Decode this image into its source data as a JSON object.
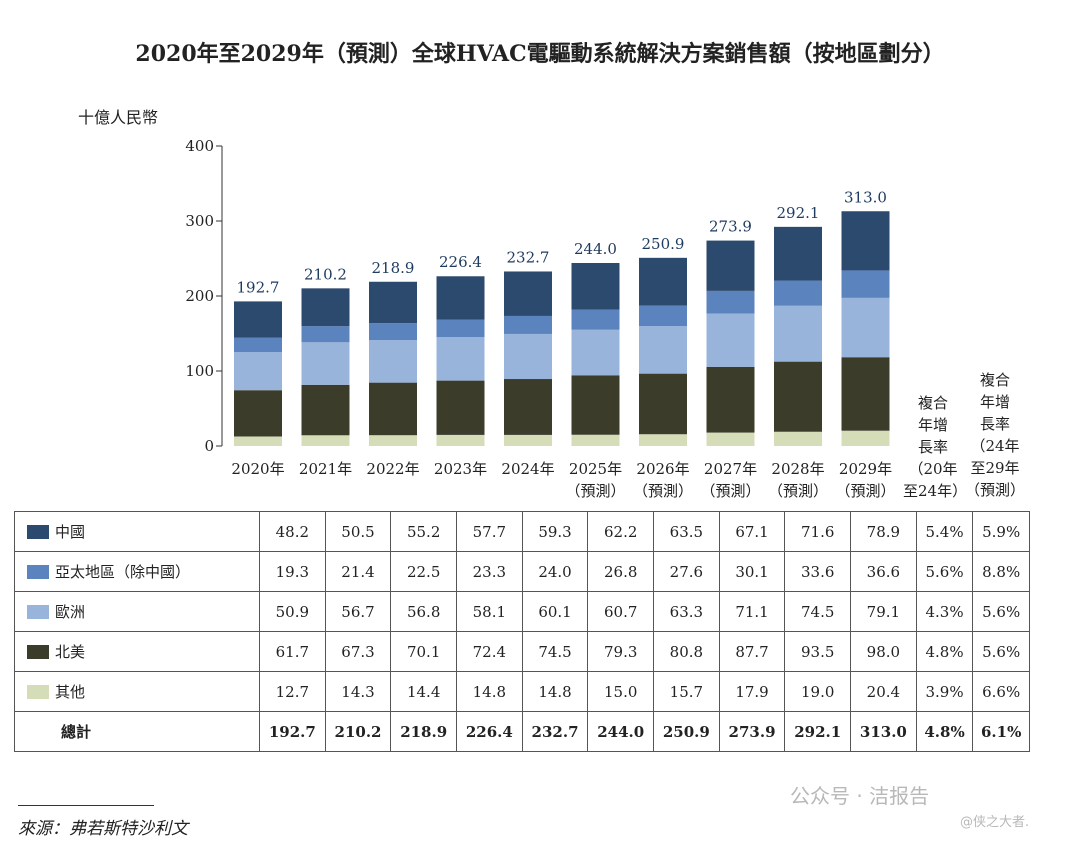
{
  "title": "2020年至2029年（預測）全球HVAC電驅動系統解決方案銷售額（按地區劃分）",
  "ylabel": "十億人民幣",
  "cagr_header_1": [
    "複合",
    "年增",
    "長率",
    "（20年",
    "至24年）"
  ],
  "cagr_header_2": [
    "複合",
    "年增",
    "長率",
    "（24年",
    "至29年",
    "（預測）"
  ],
  "source": "來源：弗若斯特沙利文",
  "watermark": "公众号 · 洁报告",
  "watermark_sub": "@侠之大者.",
  "colors": {
    "china": "#2c4a6e",
    "apac": "#5b83bd",
    "europe": "#99b4db",
    "north_america": "#3c3c2a",
    "others": "#d4dcb8"
  },
  "chart_data": {
    "type": "bar",
    "stacked": true,
    "categories": [
      [
        "2020年"
      ],
      [
        "2021年"
      ],
      [
        "2022年"
      ],
      [
        "2023年"
      ],
      [
        "2024年"
      ],
      [
        "2025年",
        "（預測）"
      ],
      [
        "2026年",
        "（預測）"
      ],
      [
        "2027年",
        "（預測）"
      ],
      [
        "2028年",
        "（預測）"
      ],
      [
        "2029年",
        "（預測）"
      ]
    ],
    "yticks": [
      0,
      100,
      200,
      300,
      400
    ],
    "ylim": [
      0,
      400
    ],
    "totals": [
      192.7,
      210.2,
      218.9,
      226.4,
      232.7,
      244.0,
      250.9,
      273.9,
      292.1,
      313.0
    ],
    "series": [
      {
        "key": "others",
        "name": "其他",
        "values": [
          12.7,
          14.3,
          14.4,
          14.8,
          14.8,
          15.0,
          15.7,
          17.9,
          19.0,
          20.4
        ],
        "cagr1": "3.9%",
        "cagr2": "6.6%"
      },
      {
        "key": "north_america",
        "name": "北美",
        "values": [
          61.7,
          67.3,
          70.1,
          72.4,
          74.5,
          79.3,
          80.8,
          87.7,
          93.5,
          98.0
        ],
        "cagr1": "4.8%",
        "cagr2": "5.6%"
      },
      {
        "key": "europe",
        "name": "歐洲",
        "values": [
          50.9,
          56.7,
          56.8,
          58.1,
          60.1,
          60.7,
          63.3,
          71.1,
          74.5,
          79.1
        ],
        "cagr1": "4.3%",
        "cagr2": "5.6%"
      },
      {
        "key": "apac",
        "name": "亞太地區（除中國）",
        "values": [
          19.3,
          21.4,
          22.5,
          23.3,
          24.0,
          26.8,
          27.6,
          30.1,
          33.6,
          36.6
        ],
        "cagr1": "5.6%",
        "cagr2": "8.8%"
      },
      {
        "key": "china",
        "name": "中國",
        "values": [
          48.2,
          50.5,
          55.2,
          57.7,
          59.3,
          62.2,
          63.5,
          67.1,
          71.6,
          78.9
        ],
        "cagr1": "5.4%",
        "cagr2": "5.9%"
      }
    ],
    "table_order": [
      "china",
      "apac",
      "europe",
      "north_america",
      "others"
    ],
    "total_row": {
      "label": "總計",
      "values": [
        "192.7",
        "210.2",
        "218.9",
        "226.4",
        "232.7",
        "244.0",
        "250.9",
        "273.9",
        "292.1",
        "313.0"
      ],
      "cagr1": "4.8%",
      "cagr2": "6.1%"
    }
  }
}
